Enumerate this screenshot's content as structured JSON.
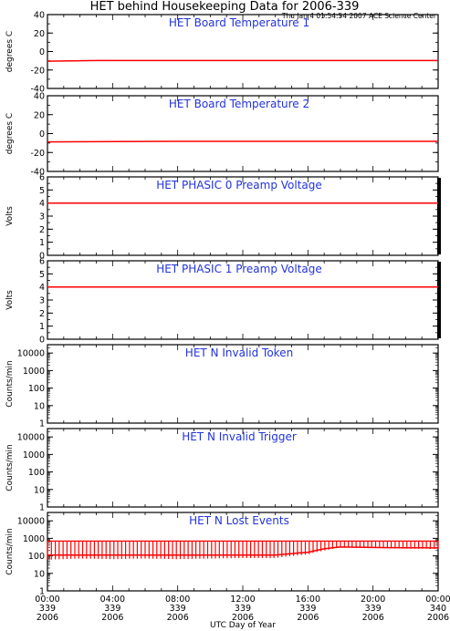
{
  "title": "HET behind Housekeeping Data for 2006-339",
  "timestamp": "Thu Jan  4 01:54:54 2007 ACE Science Center",
  "xlabel": "UTC Day of Year",
  "x_ticks": [
    {
      "time": "00:00",
      "doy": "339",
      "year": "2006"
    },
    {
      "time": "04:00",
      "doy": "339",
      "year": "2006"
    },
    {
      "time": "08:00",
      "doy": "339",
      "year": "2006"
    },
    {
      "time": "12:00",
      "doy": "339",
      "year": "2006"
    },
    {
      "time": "16:00",
      "doy": "339",
      "year": "2006"
    },
    {
      "time": "20:00",
      "doy": "339",
      "year": "2006"
    },
    {
      "time": "00:00",
      "doy": "340",
      "year": "2006"
    }
  ],
  "colors": {
    "data": "#ff0000",
    "panel_title": "#2233dd",
    "axes": "#000000"
  },
  "chart_data": [
    {
      "type": "line",
      "title": "HET Board Temperature 1",
      "ylabel": "degrees C",
      "ylim": [
        -40,
        40
      ],
      "y_ticks": [
        40,
        20,
        0,
        -20,
        -40
      ],
      "y_scale": "linear",
      "x_hours": [
        0,
        3,
        24
      ],
      "values": [
        -10.5,
        -9.8,
        -9.8
      ]
    },
    {
      "type": "line",
      "title": "HET Board Temperature 2",
      "ylabel": "degrees C",
      "ylim": [
        -40,
        40
      ],
      "y_ticks": [
        40,
        20,
        0,
        -20,
        -40
      ],
      "y_scale": "linear",
      "x_hours": [
        0,
        7.5,
        24
      ],
      "values": [
        -8.8,
        -8.2,
        -8.2
      ]
    },
    {
      "type": "line",
      "title": "HET PHASIC 0 Preamp Voltage",
      "ylabel": "Volts",
      "ylim": [
        0,
        6
      ],
      "y_ticks": [
        6,
        5,
        4,
        3,
        2,
        1,
        0
      ],
      "y_scale": "linear",
      "x_hours": [
        0,
        24
      ],
      "values": [
        4.0,
        4.0
      ]
    },
    {
      "type": "line",
      "title": "HET PHASIC 1 Preamp Voltage",
      "ylabel": "Volts",
      "ylim": [
        0,
        6
      ],
      "y_ticks": [
        6,
        5,
        4,
        3,
        2,
        1,
        0
      ],
      "y_scale": "linear",
      "x_hours": [
        0,
        24
      ],
      "values": [
        4.0,
        4.0
      ]
    },
    {
      "type": "line",
      "title": "HET N Invalid Token",
      "ylabel": "Counts/min",
      "ylim": [
        1,
        30000
      ],
      "y_ticks": [
        10000,
        1000,
        100,
        10,
        1
      ],
      "y_scale": "log",
      "x_hours": [],
      "values": []
    },
    {
      "type": "line",
      "title": "HET N Invalid Trigger",
      "ylabel": "Counts/min",
      "ylim": [
        1,
        30000
      ],
      "y_ticks": [
        10000,
        1000,
        100,
        10,
        1
      ],
      "y_scale": "log",
      "x_hours": [],
      "values": []
    },
    {
      "type": "line",
      "title": "HET N Lost Events",
      "ylabel": "Counts/min",
      "ylim": [
        1,
        30000
      ],
      "y_ticks": [
        10000,
        1000,
        100,
        10,
        1
      ],
      "y_scale": "log",
      "series_range": {
        "x_hours": [
          0,
          2,
          4,
          6,
          8,
          10,
          12,
          14,
          16,
          17,
          18,
          20,
          22,
          24
        ],
        "low": [
          60,
          70,
          65,
          70,
          65,
          70,
          75,
          75,
          120,
          200,
          300,
          280,
          260,
          250
        ],
        "high": [
          700,
          700,
          700,
          700,
          700,
          700,
          700,
          700,
          700,
          700,
          700,
          700,
          700,
          700
        ],
        "base": [
          110,
          110,
          110,
          110,
          110,
          110,
          110,
          110,
          160,
          250,
          320,
          300,
          290,
          280
        ]
      }
    }
  ]
}
